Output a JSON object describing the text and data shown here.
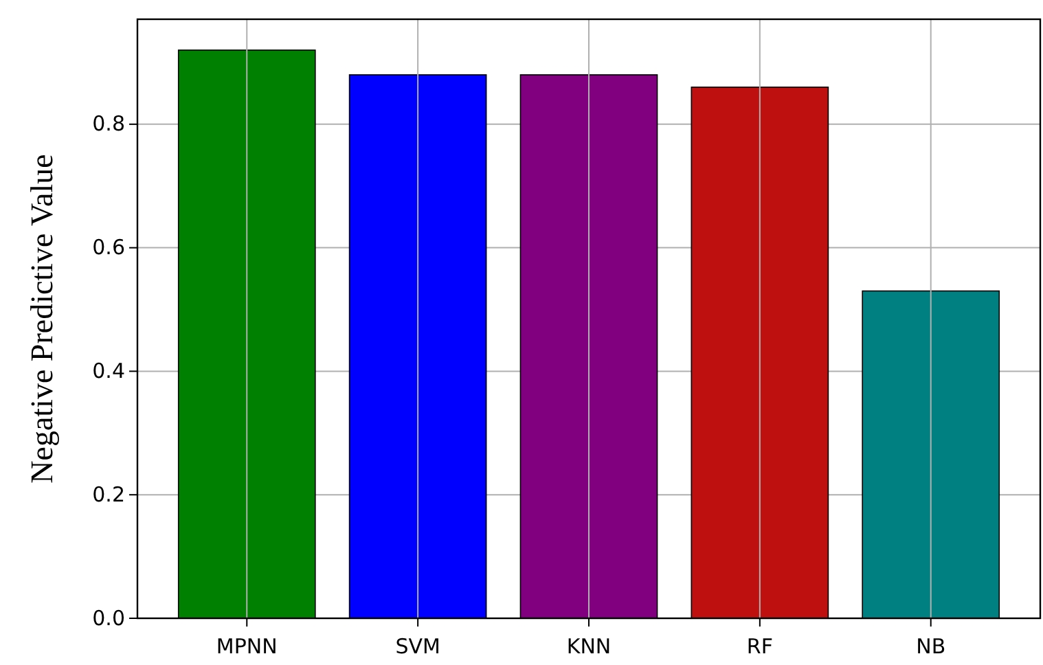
{
  "chart_data": {
    "type": "bar",
    "ylabel": "Negative Predictive Value",
    "categories": [
      "MPNN",
      "SVM",
      "KNN",
      "RF",
      "NB"
    ],
    "values": [
      0.92,
      0.88,
      0.88,
      0.86,
      0.53
    ],
    "colors": [
      "#008000",
      "#0000ff",
      "#800080",
      "#bf1010",
      "#008080"
    ],
    "ylim": [
      0,
      0.97
    ],
    "yticks": [
      {
        "value": 0,
        "label": "0.0"
      },
      {
        "value": 0.2,
        "label": "0.2"
      },
      {
        "value": 0.4,
        "label": "0.4"
      },
      {
        "value": 0.6,
        "label": "0.6"
      },
      {
        "value": 0.8,
        "label": "0.8"
      }
    ],
    "grid": true
  }
}
